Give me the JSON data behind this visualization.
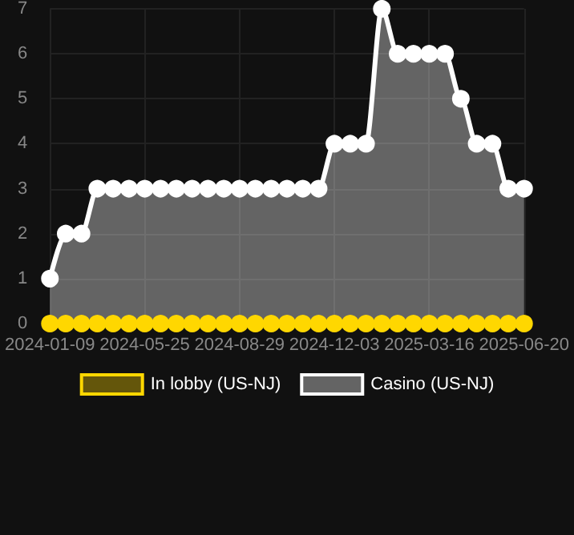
{
  "chart_data": {
    "type": "area",
    "categories": [
      "2024-01-09",
      null,
      null,
      null,
      null,
      null,
      "2024-05-25",
      null,
      null,
      null,
      null,
      null,
      "2024-08-29",
      null,
      null,
      null,
      null,
      null,
      "2024-12-03",
      null,
      null,
      null,
      null,
      null,
      "2025-03-16",
      null,
      null,
      null,
      null,
      null,
      "2025-06-20"
    ],
    "series": [
      {
        "name": "In lobby (US-NJ)",
        "type": "line",
        "color": "#ffd700",
        "values": [
          0,
          0,
          0,
          0,
          0,
          0,
          0,
          0,
          0,
          0,
          0,
          0,
          0,
          0,
          0,
          0,
          0,
          0,
          0,
          0,
          0,
          0,
          0,
          0,
          0,
          0,
          0,
          0,
          0,
          0,
          0
        ]
      },
      {
        "name": "Casino (US-NJ)",
        "color": "#ffffff",
        "values": [
          1,
          2,
          2,
          3,
          3,
          3,
          3,
          3,
          3,
          3,
          3,
          3,
          3,
          3,
          3,
          3,
          3,
          3,
          4,
          4,
          4,
          7,
          6,
          6,
          6,
          6,
          5,
          4,
          4,
          3,
          3
        ]
      }
    ],
    "ylim": [
      0,
      7
    ],
    "yticks": [
      0,
      1,
      2,
      3,
      4,
      5,
      6,
      7
    ],
    "grid": true,
    "legend": "bottom",
    "marker": "circle"
  }
}
